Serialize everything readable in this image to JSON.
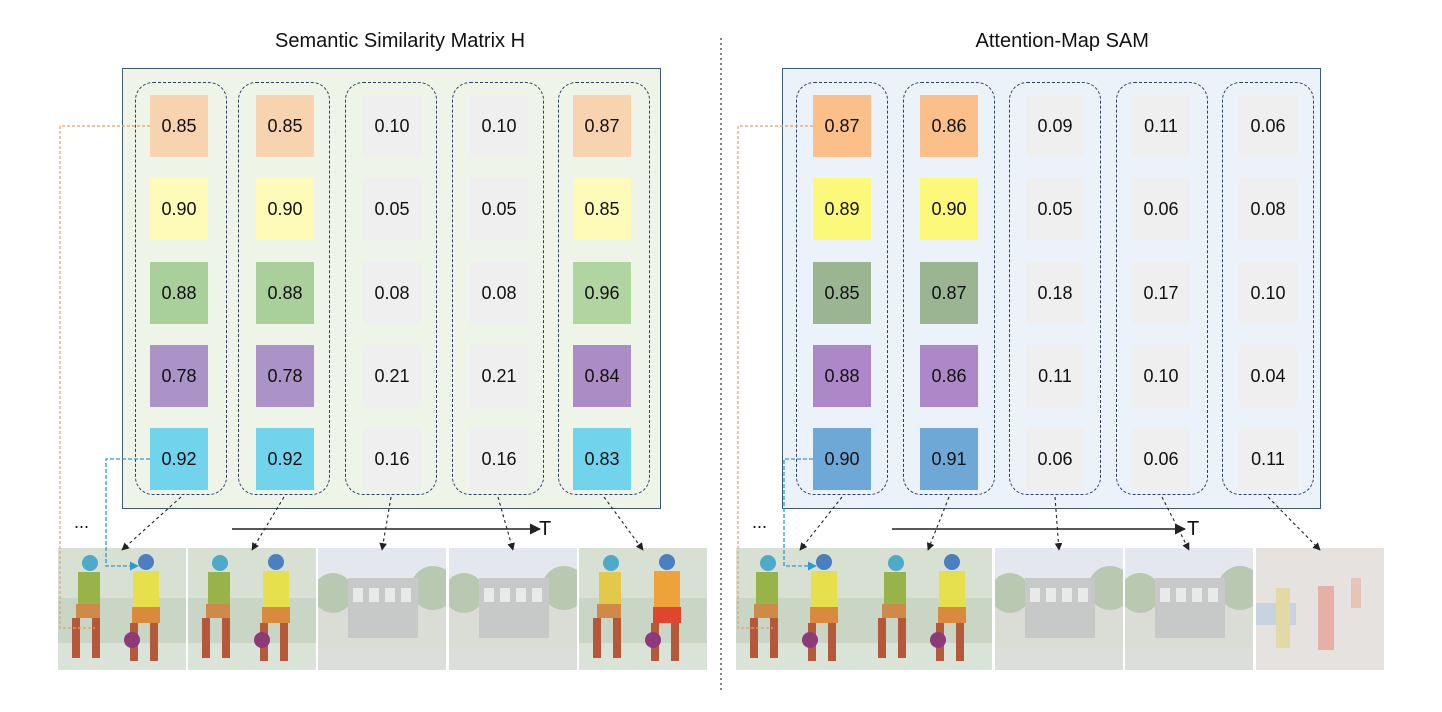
{
  "panels": [
    {
      "title": "Semantic Similarity Matrix H",
      "background": "#eef5e8",
      "time_label": "T",
      "ellipsis": "...",
      "columns": [
        {
          "values": [
            "0.85",
            "0.90",
            "0.88",
            "0.78",
            "0.92"
          ],
          "colors": [
            "#f7d3b0",
            "#fefbb8",
            "#a9cf9a",
            "#ab92c7",
            "#72d4ec"
          ],
          "frame": "players-colored"
        },
        {
          "values": [
            "0.85",
            "0.90",
            "0.88",
            "0.78",
            "0.92"
          ],
          "colors": [
            "#f7d3b0",
            "#fefbb8",
            "#a9cf9a",
            "#ab92c7",
            "#72d4ec"
          ],
          "frame": "players-colored"
        },
        {
          "values": [
            "0.10",
            "0.05",
            "0.08",
            "0.21",
            "0.16"
          ],
          "colors": [
            "#efefef",
            "#efefef",
            "#efefef",
            "#efefef",
            "#efefef"
          ],
          "frame": "building"
        },
        {
          "values": [
            "0.10",
            "0.05",
            "0.08",
            "0.21",
            "0.16"
          ],
          "colors": [
            "#efefef",
            "#efefef",
            "#efefef",
            "#efefef",
            "#efefef"
          ],
          "frame": "building"
        },
        {
          "values": [
            "0.87",
            "0.85",
            "0.96",
            "0.84",
            "0.83"
          ],
          "colors": [
            "#f7d3b0",
            "#fefbb8",
            "#b1d5a0",
            "#ab8cc4",
            "#72d4ec"
          ],
          "frame": "players-game"
        }
      ]
    },
    {
      "title": "Attention-Map SAM",
      "background": "#ebf2f9",
      "time_label": "T",
      "ellipsis": "...",
      "columns": [
        {
          "values": [
            "0.87",
            "0.89",
            "0.85",
            "0.88",
            "0.90"
          ],
          "colors": [
            "#fbc089",
            "#fbf87a",
            "#9bb593",
            "#ad88c8",
            "#6ea8d6"
          ],
          "frame": "players-colored"
        },
        {
          "values": [
            "0.86",
            "0.90",
            "0.87",
            "0.86",
            "0.91"
          ],
          "colors": [
            "#fbc089",
            "#fbf87a",
            "#9bb593",
            "#ad88c8",
            "#6ea8d6"
          ],
          "frame": "players-colored"
        },
        {
          "values": [
            "0.09",
            "0.05",
            "0.18",
            "0.11",
            "0.06"
          ],
          "colors": [
            "#efefef",
            "#efefef",
            "#efefef",
            "#efefef",
            "#efefef"
          ],
          "frame": "building"
        },
        {
          "values": [
            "0.11",
            "0.06",
            "0.17",
            "0.10",
            "0.06"
          ],
          "colors": [
            "#efefef",
            "#efefef",
            "#efefef",
            "#efefef",
            "#efefef"
          ],
          "frame": "building"
        },
        {
          "values": [
            "0.06",
            "0.08",
            "0.10",
            "0.04",
            "0.11"
          ],
          "colors": [
            "#efefef",
            "#efefef",
            "#efefef",
            "#efefef",
            "#efefef"
          ],
          "frame": "players-faded"
        }
      ]
    }
  ],
  "colors": {
    "matrix_border": "#3c5a74",
    "group_dash": "#2c3e66",
    "link_orange": "#e0a36a",
    "link_blue": "#2a9ad8",
    "arrow": "#222222",
    "divider": "#333333"
  }
}
